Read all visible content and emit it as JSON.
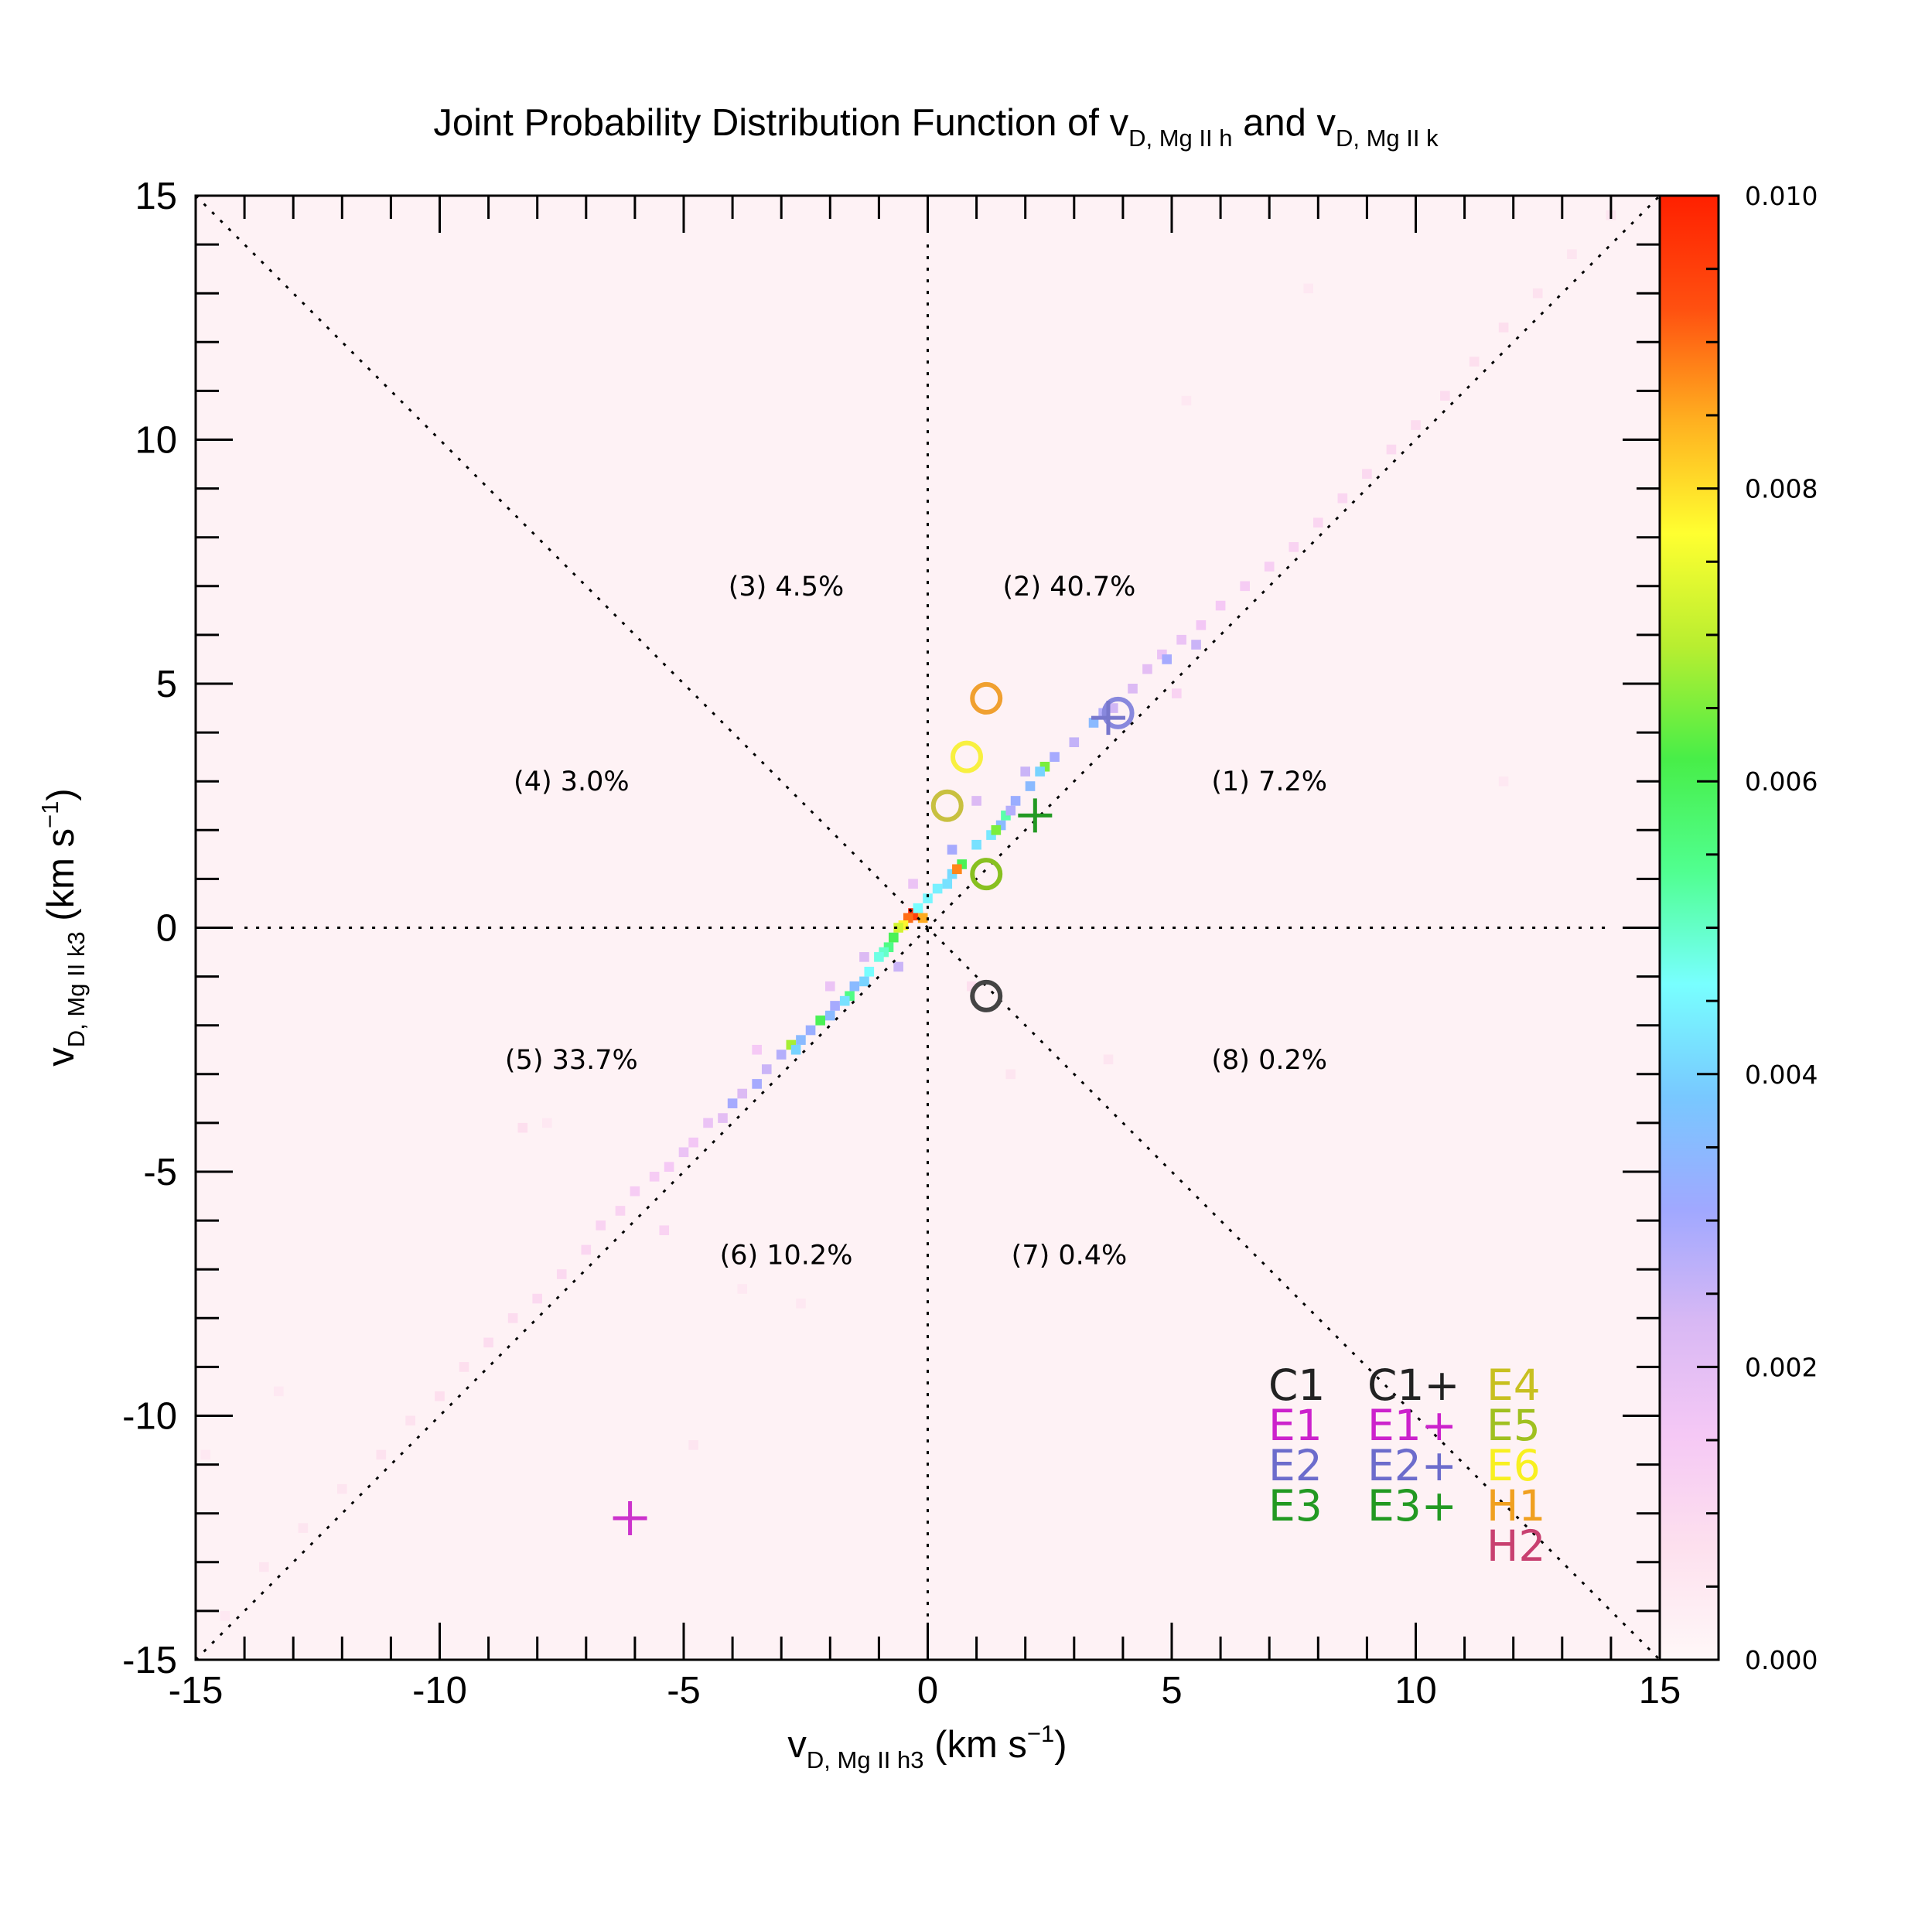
{
  "chart_data": {
    "type": "heatmap",
    "title": {
      "main": "Joint Probability Distribution Function of v",
      "sub1": "D, Mg II h",
      "mid": " and v",
      "sub2": "D, Mg II k"
    },
    "xlabel": {
      "base": "v",
      "sub": "D, Mg II h3",
      "rest": " (km s",
      "sup": "−1",
      "close": ")"
    },
    "ylabel": {
      "base": "v",
      "sub": "D, Mg II k3",
      "rest": " (km s",
      "sup": "−1",
      "close": ")"
    },
    "xlim": [
      -15,
      15
    ],
    "ylim": [
      -15,
      15
    ],
    "x_ticks": [
      "-15",
      "-10",
      "-5",
      "0",
      "5",
      "10",
      "15"
    ],
    "y_ticks": [
      "15",
      "10",
      "5",
      "0",
      "-5",
      "-10",
      "-15"
    ],
    "x_tick_values": [
      -15,
      -10,
      -5,
      0,
      5,
      10,
      15
    ],
    "y_tick_values": [
      15,
      10,
      5,
      0,
      -5,
      -10,
      -15
    ],
    "colorbar": {
      "range": [
        0,
        0.01
      ],
      "ticks": [
        "0.010",
        "0.008",
        "0.006",
        "0.004",
        "0.002",
        "0.000"
      ],
      "tick_values": [
        0.01,
        0.008,
        0.006,
        0.004,
        0.002,
        0.0
      ],
      "stops": [
        "#fff8f8",
        "#fde0ee",
        "#f5c8f5",
        "#d8b8f4",
        "#a0a8ff",
        "#78c8ff",
        "#78ffff",
        "#50ff90",
        "#48ee48",
        "#b8ee30",
        "#ffff30",
        "#ffb020",
        "#ff5010",
        "#ff2000"
      ]
    },
    "regions": [
      {
        "label": "(1)  7.2%",
        "x": 7.0,
        "y": 3.0
      },
      {
        "label": "(2) 40.7%",
        "x": 2.9,
        "y": 7.0
      },
      {
        "label": "(3)  4.5%",
        "x": -2.9,
        "y": 7.0
      },
      {
        "label": "(4)  3.0%",
        "x": -7.3,
        "y": 3.0
      },
      {
        "label": "(5) 33.7%",
        "x": -7.3,
        "y": -2.7
      },
      {
        "label": "(6) 10.2%",
        "x": -2.9,
        "y": -6.7
      },
      {
        "label": "(7)  0.4%",
        "x": 2.9,
        "y": -6.7
      },
      {
        "label": "(8)  0.2%",
        "x": 7.0,
        "y": -2.7
      }
    ],
    "reference_lines": [
      "x = 0",
      "y = 0",
      "y = x",
      "y = -x"
    ],
    "legend": {
      "placement": "bottom-right",
      "columns": [
        [
          {
            "label": "C1",
            "color": "#222222"
          },
          {
            "label": "E1",
            "color": "#cc22cc"
          },
          {
            "label": "E2",
            "color": "#6c6ccc"
          },
          {
            "label": "E3",
            "color": "#229922"
          }
        ],
        [
          {
            "label": "C1+",
            "color": "#222222"
          },
          {
            "label": "E1+",
            "color": "#cc22cc"
          },
          {
            "label": "E2+",
            "color": "#6c6ccc"
          },
          {
            "label": "E3+",
            "color": "#229922"
          }
        ],
        [
          {
            "label": "E4",
            "color": "#c8c020"
          },
          {
            "label": "E5",
            "color": "#a0c020"
          },
          {
            "label": "E6",
            "color": "#f8f020"
          },
          {
            "label": "H1",
            "color": "#f0a020"
          },
          {
            "label": "H2",
            "color": "#c84070"
          }
        ]
      ]
    },
    "markers": [
      {
        "name": "C1",
        "shape": "circle",
        "x": 1.2,
        "y": -1.4,
        "color": "#444444"
      },
      {
        "name": "E2",
        "shape": "circle",
        "x": 3.9,
        "y": 4.4,
        "color": "#8888dd"
      },
      {
        "name": "E4",
        "shape": "circle",
        "x": 0.4,
        "y": 2.5,
        "color": "#c8c040"
      },
      {
        "name": "E5",
        "shape": "circle",
        "x": 1.2,
        "y": 1.1,
        "color": "#88c020"
      },
      {
        "name": "E6",
        "shape": "circle",
        "x": 0.8,
        "y": 3.5,
        "color": "#f8f040"
      },
      {
        "name": "H1",
        "shape": "circle",
        "x": 1.2,
        "y": 4.7,
        "color": "#f0a030"
      },
      {
        "name": "E1+",
        "shape": "plus",
        "x": -6.1,
        "y": -12.1,
        "color": "#cc33cc"
      },
      {
        "name": "E2+",
        "shape": "plus",
        "x": 3.7,
        "y": 4.3,
        "color": "#7777cc"
      },
      {
        "name": "E3+",
        "shape": "plus",
        "x": 2.2,
        "y": 2.3,
        "color": "#229922"
      }
    ],
    "density_points": [
      [
        -0.3,
        0.3,
        0.01
      ],
      [
        -0.2,
        0.25,
        0.0095
      ],
      [
        -0.4,
        0.2,
        0.009
      ],
      [
        -0.1,
        0.2,
        0.0085
      ],
      [
        -0.5,
        0.05,
        0.0078
      ],
      [
        -0.6,
        0.0,
        0.0072
      ],
      [
        -0.7,
        -0.2,
        0.006
      ],
      [
        -0.8,
        -0.4,
        0.0055
      ],
      [
        -0.9,
        -0.5,
        0.005
      ],
      [
        -1.0,
        -0.6,
        0.0048
      ],
      [
        -0.2,
        0.4,
        0.0046
      ],
      [
        0.0,
        0.6,
        0.0045
      ],
      [
        0.2,
        0.8,
        0.0044
      ],
      [
        0.4,
        0.9,
        0.0042
      ],
      [
        0.5,
        1.1,
        0.0041
      ],
      [
        0.7,
        1.3,
        0.006
      ],
      [
        0.6,
        1.2,
        0.0088
      ],
      [
        1.0,
        1.7,
        0.0042
      ],
      [
        1.3,
        1.9,
        0.0043
      ],
      [
        1.5,
        2.1,
        0.0035
      ],
      [
        1.4,
        2.0,
        0.0065
      ],
      [
        1.6,
        2.3,
        0.0052
      ],
      [
        1.8,
        2.6,
        0.0032
      ],
      [
        1.7,
        2.4,
        0.0028
      ],
      [
        2.1,
        2.9,
        0.0035
      ],
      [
        2.4,
        3.3,
        0.0065
      ],
      [
        2.3,
        3.2,
        0.004
      ],
      [
        2.6,
        3.5,
        0.003
      ],
      [
        3.0,
        3.8,
        0.0026
      ],
      [
        3.4,
        4.2,
        0.0035
      ],
      [
        3.6,
        4.4,
        0.0028
      ],
      [
        3.8,
        4.5,
        0.0024
      ],
      [
        -1.2,
        -0.9,
        0.0046
      ],
      [
        -1.3,
        -1.1,
        0.004
      ],
      [
        -1.5,
        -1.2,
        0.0035
      ],
      [
        -1.6,
        -1.4,
        0.0055
      ],
      [
        -1.7,
        -1.5,
        0.0042
      ],
      [
        -1.9,
        -1.6,
        0.003
      ],
      [
        -2.0,
        -1.8,
        0.0035
      ],
      [
        -2.2,
        -1.9,
        0.006
      ],
      [
        -2.4,
        -2.1,
        0.0032
      ],
      [
        -2.6,
        -2.3,
        0.0035
      ],
      [
        -2.8,
        -2.4,
        0.0068
      ],
      [
        -2.7,
        -2.5,
        0.004
      ],
      [
        -3.0,
        -2.6,
        0.0028
      ],
      [
        -3.3,
        -2.9,
        0.0025
      ],
      [
        -3.5,
        -3.2,
        0.003
      ],
      [
        -3.8,
        -3.4,
        0.0022
      ],
      [
        -4.0,
        -3.6,
        0.003
      ],
      [
        -4.2,
        -3.9,
        0.002
      ],
      [
        -4.5,
        -4.0,
        0.0018
      ],
      [
        -4.8,
        -4.4,
        0.0016
      ],
      [
        -5.0,
        -4.6,
        0.0018
      ],
      [
        -5.3,
        -4.9,
        0.0015
      ],
      [
        -5.6,
        -5.1,
        0.0014
      ],
      [
        -6.0,
        -5.4,
        0.0014
      ],
      [
        -6.3,
        -5.8,
        0.0012
      ],
      [
        -6.7,
        -6.1,
        0.0012
      ],
      [
        -7.0,
        -6.6,
        0.0011
      ],
      [
        -7.5,
        -7.1,
        0.001
      ],
      [
        -8.0,
        -7.6,
        0.001
      ],
      [
        -8.5,
        -8.0,
        0.0009
      ],
      [
        -9.0,
        -8.5,
        0.0009
      ],
      [
        -9.5,
        -9.0,
        0.0008
      ],
      [
        -10.0,
        -9.6,
        0.0008
      ],
      [
        -10.6,
        -10.1,
        0.0007
      ],
      [
        -11.2,
        -10.8,
        0.0007
      ],
      [
        -12.0,
        -11.5,
        0.0006
      ],
      [
        -12.8,
        -12.3,
        0.0006
      ],
      [
        -13.6,
        -13.1,
        0.0006
      ],
      [
        -14.4,
        -14.1,
        0.0005
      ],
      [
        -14.8,
        -10.8,
        0.0005
      ],
      [
        4.2,
        4.9,
        0.0022
      ],
      [
        4.5,
        5.3,
        0.002
      ],
      [
        4.8,
        5.6,
        0.0018
      ],
      [
        5.2,
        5.9,
        0.0018
      ],
      [
        5.6,
        6.2,
        0.0016
      ],
      [
        6.0,
        6.6,
        0.0015
      ],
      [
        6.5,
        7.0,
        0.0014
      ],
      [
        7.0,
        7.4,
        0.0013
      ],
      [
        7.5,
        7.8,
        0.0012
      ],
      [
        8.0,
        8.3,
        0.0011
      ],
      [
        8.5,
        8.8,
        0.0011
      ],
      [
        9.0,
        9.3,
        0.001
      ],
      [
        9.5,
        9.8,
        0.001
      ],
      [
        10.0,
        10.3,
        0.0009
      ],
      [
        10.6,
        10.9,
        0.0009
      ],
      [
        11.2,
        11.6,
        0.0008
      ],
      [
        11.8,
        12.3,
        0.0008
      ],
      [
        12.5,
        13.0,
        0.0007
      ],
      [
        13.2,
        13.8,
        0.0006
      ],
      [
        14.0,
        14.6,
        0.0006
      ],
      [
        2.0,
        3.2,
        0.0025
      ],
      [
        1.0,
        2.6,
        0.0022
      ],
      [
        0.5,
        1.6,
        0.003
      ],
      [
        -0.3,
        0.9,
        0.0018
      ],
      [
        -0.6,
        -0.8,
        0.0025
      ],
      [
        -1.3,
        -0.6,
        0.0022
      ],
      [
        -2.0,
        -1.2,
        0.0018
      ],
      [
        -3.5,
        -2.5,
        0.0015
      ],
      [
        5.5,
        5.8,
        0.0025
      ],
      [
        4.9,
        5.5,
        0.003
      ],
      [
        5.1,
        4.8,
        0.0012
      ],
      [
        -5.4,
        -6.2,
        0.0012
      ],
      [
        -8.3,
        -4.1,
        0.0008
      ],
      [
        -4.8,
        -10.6,
        0.0006
      ],
      [
        11.8,
        3.0,
        0.0005
      ],
      [
        7.8,
        13.1,
        0.0005
      ],
      [
        5.3,
        10.8,
        0.0005
      ],
      [
        -7.8,
        -4.0,
        0.0005
      ],
      [
        0.9,
        -1.2,
        0.0008
      ],
      [
        1.7,
        -3.0,
        0.0006
      ],
      [
        -2.6,
        -7.7,
        0.0005
      ],
      [
        -13.3,
        -9.5,
        0.0005
      ],
      [
        -3.8,
        -7.4,
        0.0005
      ],
      [
        3.7,
        -2.7,
        0.0006
      ]
    ]
  }
}
